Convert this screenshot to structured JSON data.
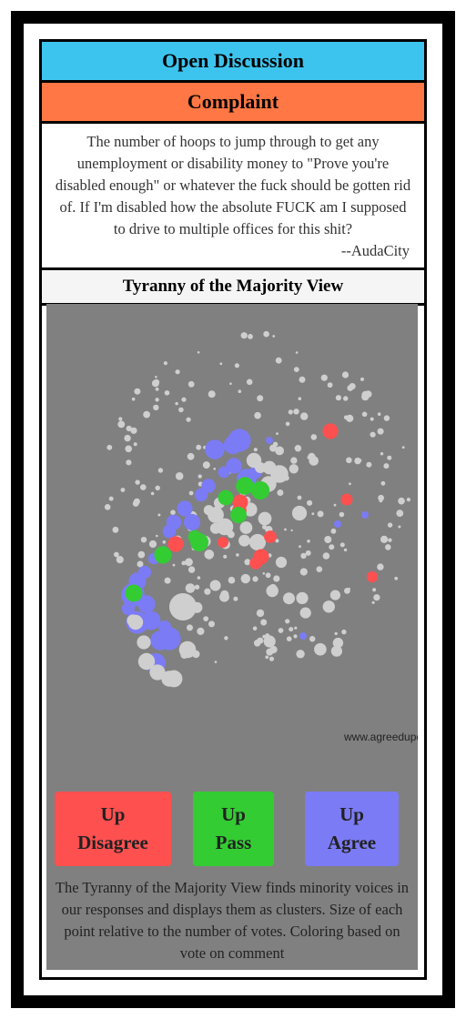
{
  "header": {
    "title": "Open Discussion"
  },
  "category": {
    "label": "Complaint"
  },
  "comment": {
    "text": "The number of hoops to jump through to get any unemployment or disability money to \"Prove you're disabled enough\" or whatever the fuck should be gotten rid of. If I'm disabled how the absolute FUCK am I supposed to drive to multiple offices for this shit?",
    "author": "--AudaCity"
  },
  "view": {
    "title": "Tyranny of the Majority View",
    "watermark": "www.agreedupon.so",
    "explanation": "The Tyranny of the Majority View finds minority voices in our responses and displays them as clusters. Size of each point relative to the number of votes. Coloring based on vote on comment"
  },
  "buttons": {
    "disagree": {
      "line1": "Up",
      "line2": "Disagree"
    },
    "pass": {
      "line1": "Up",
      "line2": "Pass"
    },
    "agree": {
      "line1": "Up",
      "line2": "Agree"
    }
  },
  "colors": {
    "header_blue": "#3dc4ee",
    "complaint_orange": "#ff7744",
    "disagree_red": "#ff5050",
    "pass_green": "#33cc33",
    "agree_purple": "#7b7bf6",
    "neutral_gray": "#cfcfcf"
  }
}
